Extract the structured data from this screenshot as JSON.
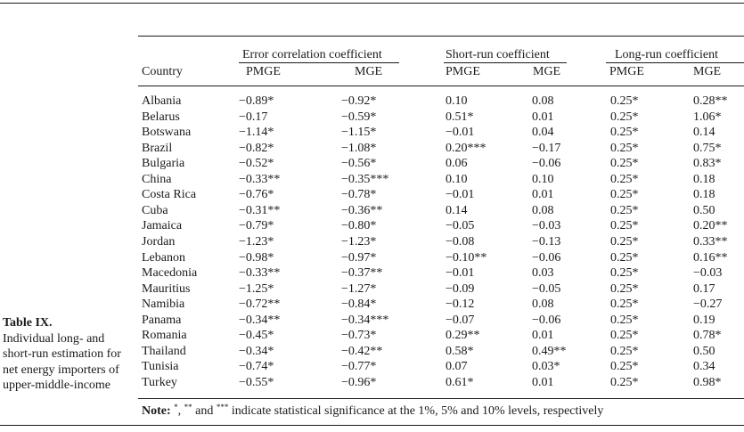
{
  "caption": {
    "title": "Table IX.",
    "text": "Individual long- and short-run estimation for net energy importers of upper-middle-income"
  },
  "groups": {
    "ec": "Error correlation coefficient",
    "sr": "Short-run coefficient",
    "lr": "Long-run coefficient"
  },
  "columns": {
    "country": "Country",
    "ec_pmge": "PMGE",
    "ec_mge": "MGE",
    "sr_pmge": "PMGE",
    "sr_mge": "MGE",
    "lr_pmge": "PMGE",
    "lr_mge": "MGE"
  },
  "rows": [
    [
      "Albania",
      "−0.89*",
      "−0.92*",
      "0.10",
      "0.08",
      "0.25*",
      "0.28**"
    ],
    [
      "Belarus",
      "−0.17",
      "−0.59*",
      "0.51*",
      "0.01",
      "0.25*",
      "1.06*"
    ],
    [
      "Botswana",
      "−1.14*",
      "−1.15*",
      "−0.01",
      "0.04",
      "0.25*",
      "0.14"
    ],
    [
      "Brazil",
      "−0.82*",
      "−1.08*",
      "0.20***",
      "−0.17",
      "0.25*",
      "0.75*"
    ],
    [
      "Bulgaria",
      "−0.52*",
      "−0.56*",
      "0.06",
      "−0.06",
      "0.25*",
      "0.83*"
    ],
    [
      "China",
      "−0.33**",
      "−0.35***",
      "0.10",
      "0.10",
      "0.25*",
      "0.18"
    ],
    [
      "Costa Rica",
      "−0.76*",
      "−0.78*",
      "−0.01",
      "0.01",
      "0.25*",
      "0.18"
    ],
    [
      "Cuba",
      "−0.31**",
      "−0.36**",
      "0.14",
      "0.08",
      "0.25*",
      "0.50"
    ],
    [
      "Jamaica",
      "−0.79*",
      "−0.80*",
      "−0.05",
      "−0.03",
      "0.25*",
      "0.20**"
    ],
    [
      "Jordan",
      "−1.23*",
      "−1.23*",
      "−0.08",
      "−0.13",
      "0.25*",
      "0.33**"
    ],
    [
      "Lebanon",
      "−0.98*",
      "−0.97*",
      "−0.10**",
      "−0.06",
      "0.25*",
      "0.16**"
    ],
    [
      "Macedonia",
      "−0.33**",
      "−0.37**",
      "−0.01",
      "0.03",
      "0.25*",
      "−0.03"
    ],
    [
      "Mauritius",
      "−1.25*",
      "−1.27*",
      "−0.09",
      "−0.05",
      "0.25*",
      "0.17"
    ],
    [
      "Namibia",
      "−0.72**",
      "−0.84*",
      "−0.12",
      "0.08",
      "0.25*",
      "−0.27"
    ],
    [
      "Panama",
      "−0.34**",
      "−0.34***",
      "−0.07",
      "−0.06",
      "0.25*",
      "0.19"
    ],
    [
      "Romania",
      "−0.45*",
      "−0.73*",
      "0.29**",
      "0.01",
      "0.25*",
      "0.78*"
    ],
    [
      "Thailand",
      "−0.34*",
      "−0.42**",
      "0.58*",
      "0.49**",
      "0.25*",
      "0.50"
    ],
    [
      "Tunisia",
      "−0.74*",
      "−0.77*",
      "0.07",
      "0.03*",
      "0.25*",
      "0.34"
    ],
    [
      "Turkey",
      "−0.55*",
      "−0.96*",
      "0.61*",
      "0.01",
      "0.25*",
      "0.98*"
    ]
  ],
  "note": {
    "label": "Note:",
    "sup1": "*",
    "sep1": ",",
    "sup2": "**",
    "and": "and",
    "sup3": "***",
    "text": "indicate statistical significance at the 1%, 5% and 10% levels, respectively"
  }
}
